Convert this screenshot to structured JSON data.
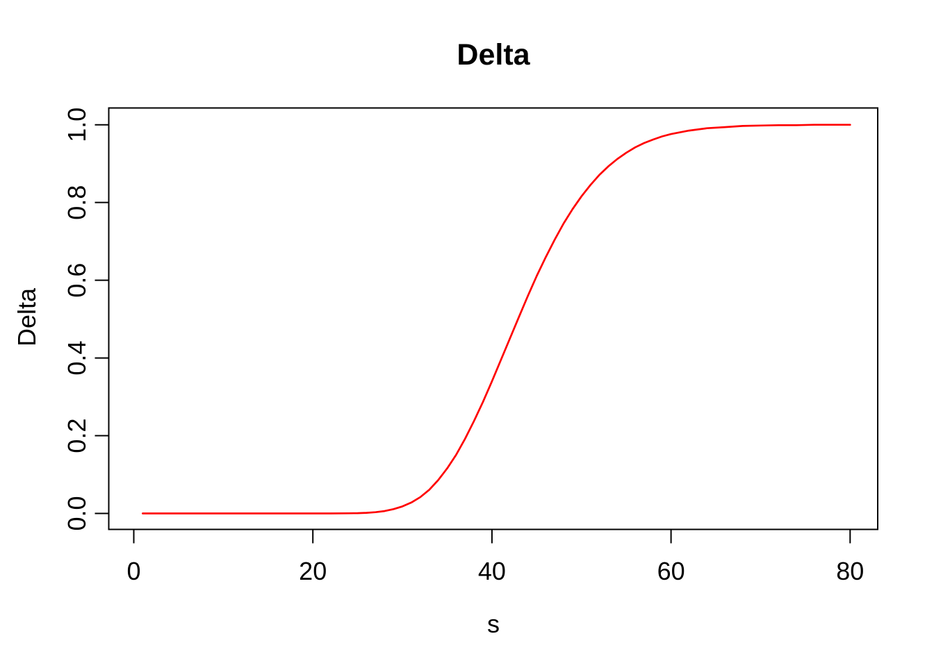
{
  "chart_data": {
    "type": "line",
    "title": "Delta",
    "xlabel": "s",
    "ylabel": "Delta",
    "grid": false,
    "legend": null,
    "xlim": [
      -2.2,
      83.2
    ],
    "ylim": [
      -0.04,
      1.04
    ],
    "x_ticks": [
      0,
      20,
      40,
      60,
      80
    ],
    "x_tick_labels": [
      "0",
      "20",
      "40",
      "60",
      "80"
    ],
    "y_ticks": [
      0.0,
      0.2,
      0.4,
      0.6,
      0.8,
      1.0
    ],
    "y_tick_labels": [
      "0.0",
      "0.2",
      "0.4",
      "0.6",
      "0.8",
      "1.0"
    ],
    "series": [
      {
        "name": "Delta",
        "x": [
          1,
          5,
          10,
          15,
          20,
          22,
          24,
          25,
          26,
          27,
          28,
          29,
          30,
          31,
          32,
          33,
          34,
          35,
          36,
          37,
          38,
          39,
          40,
          41,
          42,
          43,
          44,
          45,
          46,
          47,
          48,
          49,
          50,
          51,
          52,
          53,
          54,
          55,
          56,
          57,
          58,
          59,
          60,
          62,
          64,
          66,
          68,
          70,
          72,
          74,
          76,
          78,
          80
        ],
        "y": [
          0,
          0,
          0,
          0,
          0,
          0,
          0.0003,
          0.0007,
          0.0016,
          0.0032,
          0.006,
          0.011,
          0.018,
          0.028,
          0.042,
          0.061,
          0.086,
          0.116,
          0.151,
          0.192,
          0.238,
          0.287,
          0.34,
          0.395,
          0.45,
          0.505,
          0.559,
          0.611,
          0.659,
          0.704,
          0.746,
          0.783,
          0.816,
          0.845,
          0.871,
          0.893,
          0.912,
          0.928,
          0.942,
          0.953,
          0.962,
          0.97,
          0.976,
          0.985,
          0.991,
          0.994,
          0.997,
          0.998,
          0.999,
          0.999,
          1,
          1,
          1
        ]
      }
    ],
    "colors": {
      "curve": "#FF0000",
      "axis": "#000000",
      "text": "#000000",
      "background": "#FFFFFF"
    }
  }
}
